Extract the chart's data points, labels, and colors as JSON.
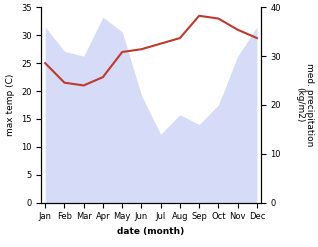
{
  "months": [
    "Jan",
    "Feb",
    "Mar",
    "Apr",
    "May",
    "Jun",
    "Jul",
    "Aug",
    "Sep",
    "Oct",
    "Nov",
    "Dec"
  ],
  "month_indices": [
    0,
    1,
    2,
    3,
    4,
    5,
    6,
    7,
    8,
    9,
    10,
    11
  ],
  "precipitation": [
    36,
    31,
    30,
    38,
    35,
    22,
    14,
    18,
    16,
    20,
    30,
    36
  ],
  "temperature": [
    25,
    21.5,
    21,
    22.5,
    27,
    27.5,
    28.5,
    29.5,
    33.5,
    33,
    31,
    29.5
  ],
  "temp_ylim": [
    0,
    35
  ],
  "precip_ylim": [
    0,
    40
  ],
  "temp_yticks": [
    0,
    5,
    10,
    15,
    20,
    25,
    30,
    35
  ],
  "precip_yticks": [
    0,
    10,
    20,
    30,
    40
  ],
  "xlabel": "date (month)",
  "ylabel_left": "max temp (C)",
  "ylabel_right": "med. precipitation\n(kg/m2)",
  "fill_color": "#c5cdf5",
  "line_color": "#c0392b",
  "fill_alpha": 0.7,
  "line_width": 1.5,
  "bg_color": "#ffffff",
  "tick_fontsize": 6,
  "label_fontsize": 6.5
}
